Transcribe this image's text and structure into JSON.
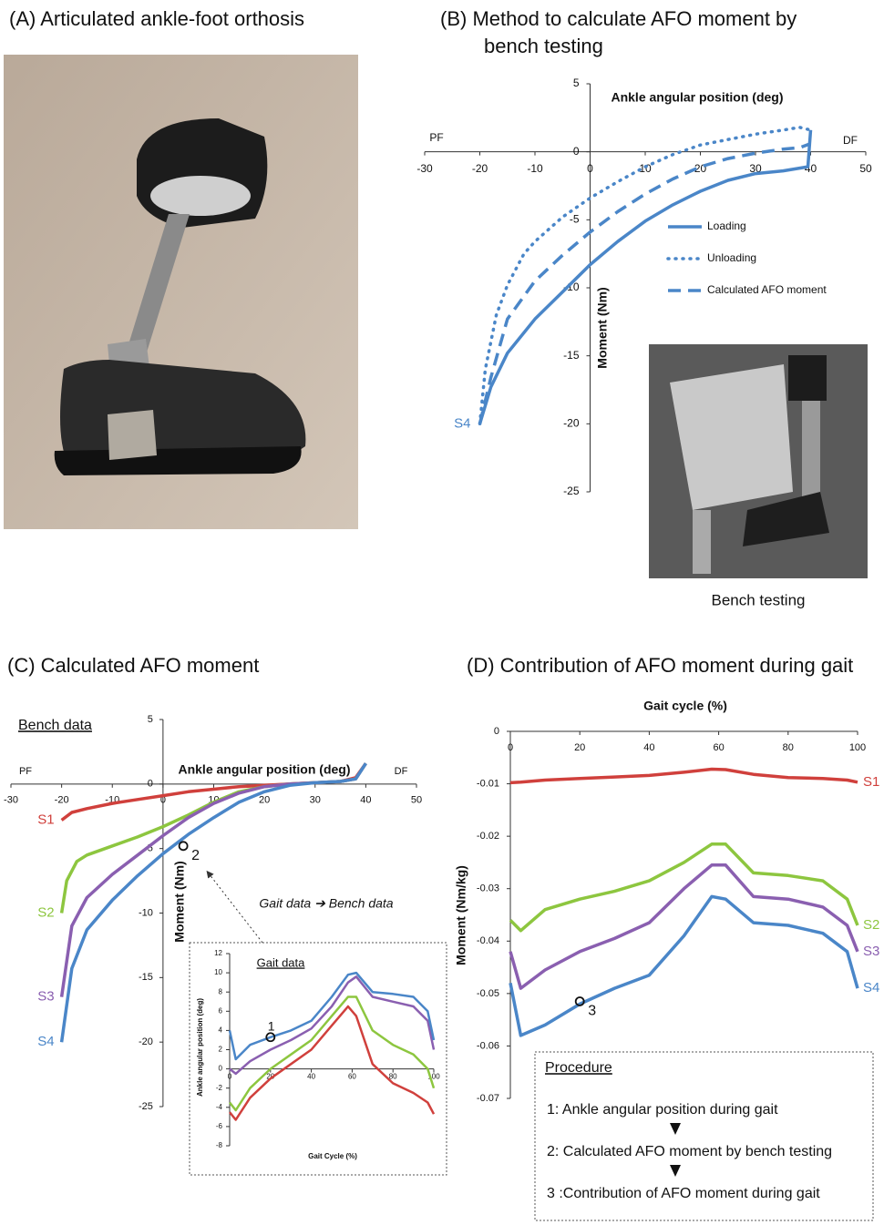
{
  "photos": [
    {
      "title": "(A) Articulated ankle-foot orthosis"
    },
    {
      "caption": "Bench testing"
    }
  ],
  "chart_data": [
    {
      "type": "line",
      "title": "(B) Method to calculate AFO moment by bench testing",
      "xlabel": "Ankle angular position (deg)",
      "ylabel": "Moment (Nm)",
      "x_end_labels": [
        "PF",
        "DF"
      ],
      "series_label": "S4",
      "xlim": [
        -30,
        50
      ],
      "xticks": [
        -30,
        -20,
        -10,
        0,
        10,
        20,
        30,
        40,
        50
      ],
      "ylim": [
        -25,
        5
      ],
      "yticks": [
        -25,
        -20,
        -15,
        -10,
        -5,
        0,
        5
      ],
      "series": [
        {
          "name": "Loading",
          "color": "#4a86c8",
          "style": "solid",
          "x": [
            -20,
            -18,
            -15,
            -10,
            -5,
            0,
            5,
            10,
            15,
            20,
            25,
            30,
            35,
            38,
            39.5,
            40
          ],
          "values": [
            -20,
            -17.3,
            -14.8,
            -12.3,
            -10.3,
            -8.3,
            -6.6,
            -5.1,
            -3.9,
            -2.9,
            -2.1,
            -1.6,
            -1.4,
            -1.2,
            -1.1,
            1.6
          ]
        },
        {
          "name": "Unloading",
          "color": "#4a86c8",
          "style": "dotted",
          "x": [
            -20,
            -19,
            -17,
            -15,
            -12,
            -10,
            -5,
            0,
            5,
            10,
            15,
            20,
            25,
            30,
            35,
            38,
            40
          ],
          "values": [
            -20,
            -16,
            -12,
            -9.8,
            -7.5,
            -6.6,
            -4.8,
            -3.4,
            -2.2,
            -1.1,
            -0.2,
            0.5,
            0.9,
            1.3,
            1.6,
            1.8,
            1.6
          ]
        },
        {
          "name": "Calculated AFO moment",
          "color": "#4a86c8",
          "style": "dashed",
          "x": [
            -20,
            -18,
            -15,
            -10,
            -5,
            0,
            5,
            10,
            15,
            20,
            25,
            30,
            35,
            38,
            40
          ],
          "values": [
            -20,
            -16.6,
            -12.3,
            -9.5,
            -7.6,
            -5.9,
            -4.4,
            -3.1,
            -2,
            -1.1,
            -0.5,
            -0.1,
            0.2,
            0.3,
            0.6
          ]
        }
      ]
    },
    {
      "type": "line",
      "title": "(C) Calculated AFO moment",
      "data_label": "Bench data",
      "annotation": "Gait data ➔ Bench data",
      "xlabel": "Ankle angular position (deg)",
      "ylabel": "Moment (Nm)",
      "x_end_labels": [
        "PF",
        "DF"
      ],
      "xlim": [
        -30,
        50
      ],
      "xticks": [
        -30,
        -20,
        -10,
        0,
        10,
        20,
        30,
        40,
        50
      ],
      "ylim": [
        -25,
        5
      ],
      "yticks": [
        -25,
        -20,
        -15,
        -10,
        -5,
        0,
        5
      ],
      "markers": [
        {
          "label": "2",
          "x": 4,
          "y": -4.8
        }
      ],
      "series": [
        {
          "name": "S1",
          "color": "#d0403c",
          "style": "solid",
          "x": [
            -20,
            -18,
            -15,
            -10,
            -5,
            0,
            5,
            10,
            15,
            20,
            25,
            30,
            35,
            38,
            40
          ],
          "values": [
            -2.8,
            -2.2,
            -1.9,
            -1.5,
            -1.2,
            -0.9,
            -0.6,
            -0.4,
            -0.2,
            -0.1,
            0,
            0.1,
            0.2,
            0.5,
            1.6
          ]
        },
        {
          "name": "S2",
          "color": "#8dc63f",
          "style": "solid",
          "x": [
            -20,
            -19,
            -17,
            -15,
            -10,
            -5,
            0,
            5,
            10,
            15,
            20,
            25,
            30,
            35,
            38,
            40
          ],
          "values": [
            -10,
            -7.5,
            -6,
            -5.5,
            -4.8,
            -4.1,
            -3.3,
            -2.4,
            -1.4,
            -0.6,
            -0.2,
            0,
            0.1,
            0.2,
            0.4,
            1.6
          ]
        },
        {
          "name": "S3",
          "color": "#8a5fb0",
          "style": "solid",
          "x": [
            -20,
            -18,
            -15,
            -10,
            -5,
            0,
            5,
            10,
            15,
            20,
            25,
            30,
            35,
            38,
            40
          ],
          "values": [
            -16.5,
            -11,
            -8.8,
            -7,
            -5.5,
            -4,
            -2.6,
            -1.5,
            -0.7,
            -0.2,
            0,
            0.1,
            0.2,
            0.4,
            1.6
          ]
        },
        {
          "name": "S4",
          "color": "#4a86c8",
          "style": "solid",
          "x": [
            -20,
            -18,
            -15,
            -10,
            -5,
            0,
            5,
            10,
            15,
            20,
            25,
            30,
            35,
            38,
            40
          ],
          "values": [
            -20,
            -14.3,
            -11.3,
            -9,
            -7.1,
            -5.4,
            -3.9,
            -2.6,
            -1.4,
            -0.6,
            -0.1,
            0.1,
            0.2,
            0.4,
            1.6
          ]
        }
      ]
    },
    {
      "type": "line",
      "title": "Gait data",
      "xlabel": "Gait Cycle (%)",
      "ylabel": "Ankle angular position (deg)",
      "xlim": [
        0,
        100
      ],
      "xticks": [
        0,
        20,
        40,
        60,
        80,
        100
      ],
      "ylim": [
        -8,
        12
      ],
      "yticks": [
        -8,
        -6,
        -4,
        -2,
        0,
        2,
        4,
        6,
        8,
        10,
        12
      ],
      "markers": [
        {
          "label": "1",
          "x": 20,
          "y": 3.3
        }
      ],
      "x": [
        0,
        3,
        10,
        20,
        30,
        40,
        50,
        58,
        62,
        70,
        80,
        90,
        97,
        100
      ],
      "series": [
        {
          "color": "#d0403c",
          "style": "solid",
          "values": [
            -4.5,
            -5.3,
            -3,
            -1,
            0.5,
            2,
            4.5,
            6.5,
            5.5,
            0.5,
            -1.5,
            -2.5,
            -3.5,
            -4.7
          ]
        },
        {
          "color": "#8dc63f",
          "style": "solid",
          "values": [
            -3.5,
            -4.3,
            -2,
            0,
            1.5,
            3,
            5.5,
            7.5,
            7.5,
            4,
            2.5,
            1.5,
            0,
            -2
          ]
        },
        {
          "color": "#8a5fb0",
          "style": "solid",
          "values": [
            0,
            -0.5,
            0.8,
            2,
            3,
            4.2,
            6.5,
            9,
            9.6,
            7.5,
            7,
            6.5,
            5,
            2
          ]
        },
        {
          "color": "#4a86c8",
          "style": "solid",
          "values": [
            4,
            1,
            2.5,
            3.3,
            4,
            5,
            7.5,
            9.8,
            10,
            8,
            7.8,
            7.5,
            6,
            3
          ]
        }
      ]
    },
    {
      "type": "line",
      "title": "(D) Contribution of AFO moment during gait",
      "xlabel": "Gait cycle (%)",
      "ylabel": "Moment (Nm/kg)",
      "xlim": [
        0,
        100
      ],
      "xticks": [
        0,
        20,
        40,
        60,
        80,
        100
      ],
      "ylim": [
        -0.07,
        0
      ],
      "yticks": [
        -0.07,
        -0.06,
        -0.05,
        -0.04,
        -0.03,
        -0.02,
        -0.01,
        0
      ],
      "markers": [
        {
          "label": "3",
          "x": 20,
          "y": -0.0515
        }
      ],
      "x": [
        0,
        3,
        10,
        20,
        30,
        40,
        50,
        58,
        62,
        70,
        80,
        90,
        97,
        100
      ],
      "series": [
        {
          "name": "S1",
          "color": "#d0403c",
          "style": "solid",
          "values": [
            -0.0098,
            -0.0097,
            -0.0093,
            -0.009,
            -0.0087,
            -0.0084,
            -0.0078,
            -0.0072,
            -0.0073,
            -0.0082,
            -0.0088,
            -0.009,
            -0.0093,
            -0.0097
          ]
        },
        {
          "name": "S2",
          "color": "#8dc63f",
          "style": "solid",
          "values": [
            -0.036,
            -0.038,
            -0.034,
            -0.032,
            -0.0305,
            -0.0285,
            -0.025,
            -0.0215,
            -0.0215,
            -0.027,
            -0.0275,
            -0.0285,
            -0.032,
            -0.037
          ]
        },
        {
          "name": "S3",
          "color": "#8a5fb0",
          "style": "solid",
          "values": [
            -0.042,
            -0.049,
            -0.0455,
            -0.042,
            -0.0395,
            -0.0365,
            -0.03,
            -0.0255,
            -0.0255,
            -0.0315,
            -0.032,
            -0.0335,
            -0.037,
            -0.042
          ]
        },
        {
          "name": "S4",
          "color": "#4a86c8",
          "style": "solid",
          "values": [
            -0.048,
            -0.058,
            -0.056,
            -0.052,
            -0.049,
            -0.0465,
            -0.039,
            -0.0315,
            -0.032,
            -0.0365,
            -0.037,
            -0.0385,
            -0.042,
            -0.049
          ]
        }
      ]
    }
  ],
  "procedure": {
    "title": "Procedure",
    "steps": [
      "1: Ankle angular position during gait",
      "2: Calculated AFO moment by bench testing",
      "3 :Contribution of AFO moment during gait"
    ]
  }
}
